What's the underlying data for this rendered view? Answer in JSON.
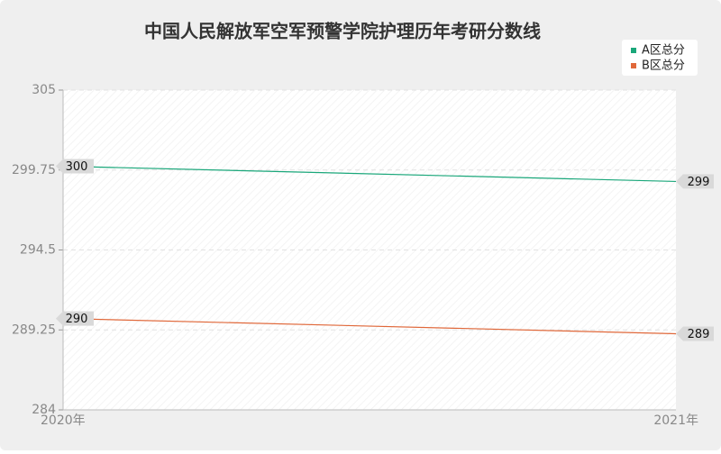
{
  "chart_data": {
    "type": "line",
    "title": "中国人民解放军空军预警学院护理历年考研分数线",
    "categories": [
      "2020年",
      "2021年"
    ],
    "series": [
      {
        "name": "A区总分",
        "color": "#1aa77a",
        "values": [
          300,
          299
        ]
      },
      {
        "name": "B区总分",
        "color": "#e0683a",
        "values": [
          290,
          289
        ]
      }
    ],
    "ylim": [
      284,
      305
    ],
    "yticks": [
      284,
      289.25,
      294.5,
      299.75,
      305
    ],
    "grid": true,
    "legend": "top-right"
  }
}
